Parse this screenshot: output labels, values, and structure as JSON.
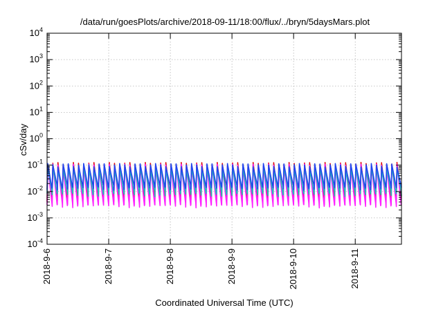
{
  "chart_data": {
    "type": "line",
    "title": "/data/run/goesPlots/archive/2018-09-11/18:00/flux/../bryn/5daysMars.plot",
    "xlabel": "Coordinated Universal Time (UTC)",
    "ylabel": "cSv/day",
    "yscale": "log",
    "ylim": [
      0.0001,
      10000
    ],
    "y_ticks": [
      {
        "base": "10",
        "exp": "-4",
        "value": 0.0001
      },
      {
        "base": "10",
        "exp": "-3",
        "value": 0.001
      },
      {
        "base": "10",
        "exp": "-2",
        "value": 0.01
      },
      {
        "base": "10",
        "exp": "-1",
        "value": 0.1
      },
      {
        "base": "10",
        "exp": "0",
        "value": 1
      },
      {
        "base": "10",
        "exp": "1",
        "value": 10
      },
      {
        "base": "10",
        "exp": "2",
        "value": 100
      },
      {
        "base": "10",
        "exp": "3",
        "value": 1000
      },
      {
        "base": "10",
        "exp": "4",
        "value": 10000
      }
    ],
    "x_ticks": [
      "2018-9-6",
      "2018-9-7",
      "2018-9-8",
      "2018-9-9",
      "2018-9-10",
      "2018-9-11"
    ],
    "xlim": [
      "2018-09-06T00:00",
      "2018-09-11T18:00"
    ],
    "grid": true,
    "oscillation_period_hours": 2,
    "series": [
      {
        "color": "#dd1111",
        "peak": 0.11,
        "trough": 0.0048
      },
      {
        "color": "#ff22ff",
        "peak": 0.095,
        "trough": 0.0028
      },
      {
        "color": "#22bbbb",
        "peak": 0.075,
        "trough": 0.0075
      },
      {
        "color": "#2244ee",
        "peak": 0.1,
        "trough": 0.013
      }
    ]
  }
}
